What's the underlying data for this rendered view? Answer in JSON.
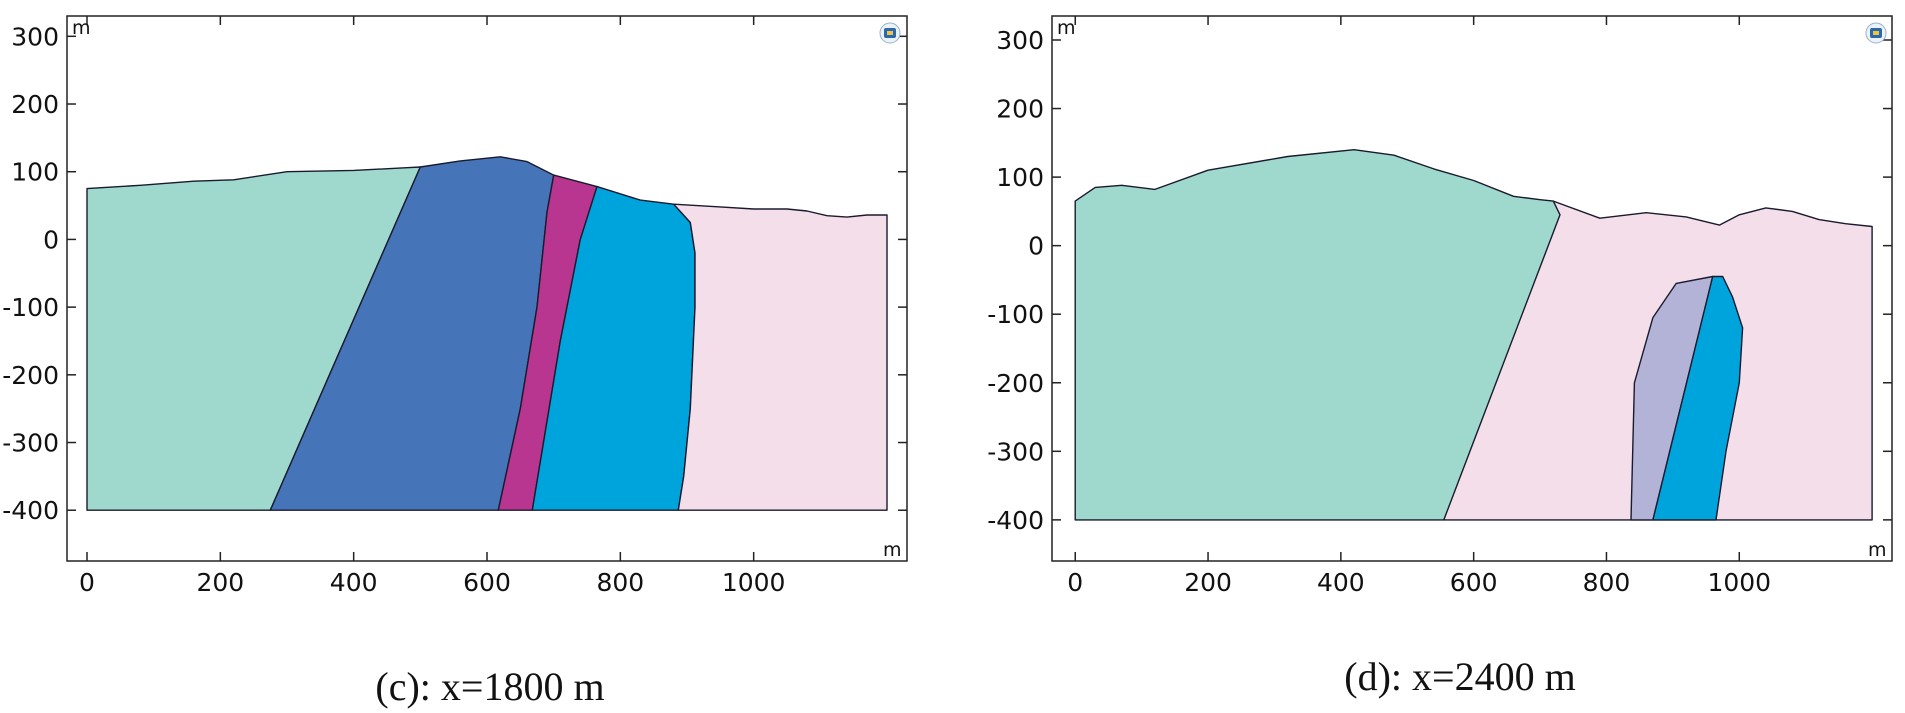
{
  "panels": [
    {
      "id": "c",
      "caption": "(c): x=1800 m",
      "x_unit": "m",
      "y_unit": "m",
      "x_ticks": [
        "0",
        "200",
        "400",
        "600",
        "800",
        "1000"
      ],
      "y_ticks": [
        "300",
        "200",
        "100",
        "0",
        "-100",
        "-200",
        "-300",
        "-400"
      ],
      "xlim": [
        -30,
        1230
      ],
      "ylim": [
        -475,
        330
      ],
      "regions": [
        {
          "name": "teal-formation",
          "color": "#9fd8cd",
          "outline": "#1a1a2e",
          "points": [
            [
              0,
              75
            ],
            [
              80,
              80
            ],
            [
              160,
              86
            ],
            [
              220,
              88
            ],
            [
              300,
              100
            ],
            [
              400,
              102
            ],
            [
              480,
              106
            ],
            [
              500,
              107
            ],
            [
              275,
              -400
            ],
            [
              0,
              -400
            ]
          ]
        },
        {
          "name": "dark-blue-formation",
          "color": "#4575b8",
          "outline": "#1a1a2e",
          "points": [
            [
              500,
              107
            ],
            [
              560,
              116
            ],
            [
              620,
              122
            ],
            [
              660,
              115
            ],
            [
              700,
              95
            ],
            [
              690,
              40
            ],
            [
              675,
              -100
            ],
            [
              650,
              -250
            ],
            [
              617,
              -400
            ],
            [
              275,
              -400
            ]
          ]
        },
        {
          "name": "magenta-formation",
          "color": "#b8368f",
          "outline": "#1a1a2e",
          "points": [
            [
              700,
              95
            ],
            [
              765,
              78
            ],
            [
              740,
              0
            ],
            [
              710,
              -150
            ],
            [
              668,
              -400
            ],
            [
              617,
              -400
            ],
            [
              650,
              -250
            ],
            [
              675,
              -100
            ],
            [
              690,
              40
            ]
          ]
        },
        {
          "name": "cyan-formation",
          "color": "#00a4dc",
          "outline": "#1a1a2e",
          "points": [
            [
              765,
              78
            ],
            [
              830,
              58
            ],
            [
              880,
              52
            ],
            [
              905,
              25
            ],
            [
              912,
              -20
            ],
            [
              912,
              -100
            ],
            [
              905,
              -250
            ],
            [
              895,
              -350
            ],
            [
              887,
              -400
            ],
            [
              668,
              -400
            ],
            [
              710,
              -150
            ],
            [
              740,
              0
            ]
          ]
        },
        {
          "name": "pink-formation",
          "color": "#f4deea",
          "outline": "#1a1a2e",
          "points": [
            [
              880,
              52
            ],
            [
              950,
              48
            ],
            [
              1000,
              45
            ],
            [
              1050,
              45
            ],
            [
              1080,
              42
            ],
            [
              1110,
              35
            ],
            [
              1140,
              33
            ],
            [
              1170,
              36
            ],
            [
              1200,
              36
            ],
            [
              1200,
              -400
            ],
            [
              887,
              -400
            ],
            [
              895,
              -350
            ],
            [
              905,
              -250
            ],
            [
              912,
              -100
            ],
            [
              912,
              -20
            ],
            [
              905,
              25
            ]
          ]
        }
      ]
    },
    {
      "id": "d",
      "caption": "(d): x=2400 m",
      "x_unit": "m",
      "y_unit": "m",
      "x_ticks": [
        "0",
        "200",
        "400",
        "600",
        "800",
        "1000"
      ],
      "y_ticks": [
        "300",
        "200",
        "100",
        "0",
        "-100",
        "-200",
        "-300",
        "-400"
      ],
      "xlim": [
        -35,
        1230
      ],
      "ylim": [
        -460,
        335
      ],
      "regions": [
        {
          "name": "pink-formation",
          "color": "#f4deea",
          "outline": "#1a1a2e",
          "points": [
            [
              720,
              65
            ],
            [
              790,
              40
            ],
            [
              860,
              48
            ],
            [
              920,
              42
            ],
            [
              970,
              30
            ],
            [
              1000,
              45
            ],
            [
              1040,
              55
            ],
            [
              1080,
              50
            ],
            [
              1120,
              38
            ],
            [
              1160,
              32
            ],
            [
              1200,
              28
            ],
            [
              1200,
              -400
            ],
            [
              555,
              -400
            ]
          ]
        },
        {
          "name": "teal-formation",
          "color": "#9fd8cd",
          "outline": "#1a1a2e",
          "points": [
            [
              0,
              65
            ],
            [
              30,
              85
            ],
            [
              70,
              88
            ],
            [
              120,
              82
            ],
            [
              200,
              110
            ],
            [
              320,
              130
            ],
            [
              420,
              140
            ],
            [
              480,
              132
            ],
            [
              540,
              112
            ],
            [
              600,
              95
            ],
            [
              660,
              72
            ],
            [
              700,
              67
            ],
            [
              720,
              65
            ],
            [
              730,
              45
            ],
            [
              555,
              -400
            ],
            [
              0,
              -400
            ]
          ]
        },
        {
          "name": "lavender-formation",
          "color": "#b3b3d8",
          "outline": "#3a3a99",
          "points": [
            [
              837,
              -400
            ],
            [
              842,
              -200
            ],
            [
              870,
              -105
            ],
            [
              905,
              -55
            ],
            [
              960,
              -45
            ],
            [
              870,
              -400
            ]
          ]
        },
        {
          "name": "cyan-formation",
          "color": "#00a4dc",
          "outline": "#1a1a2e",
          "points": [
            [
              960,
              -45
            ],
            [
              975,
              -45
            ],
            [
              990,
              -75
            ],
            [
              1005,
              -120
            ],
            [
              1000,
              -200
            ],
            [
              980,
              -300
            ],
            [
              965,
              -400
            ],
            [
              870,
              -400
            ]
          ]
        }
      ]
    }
  ]
}
